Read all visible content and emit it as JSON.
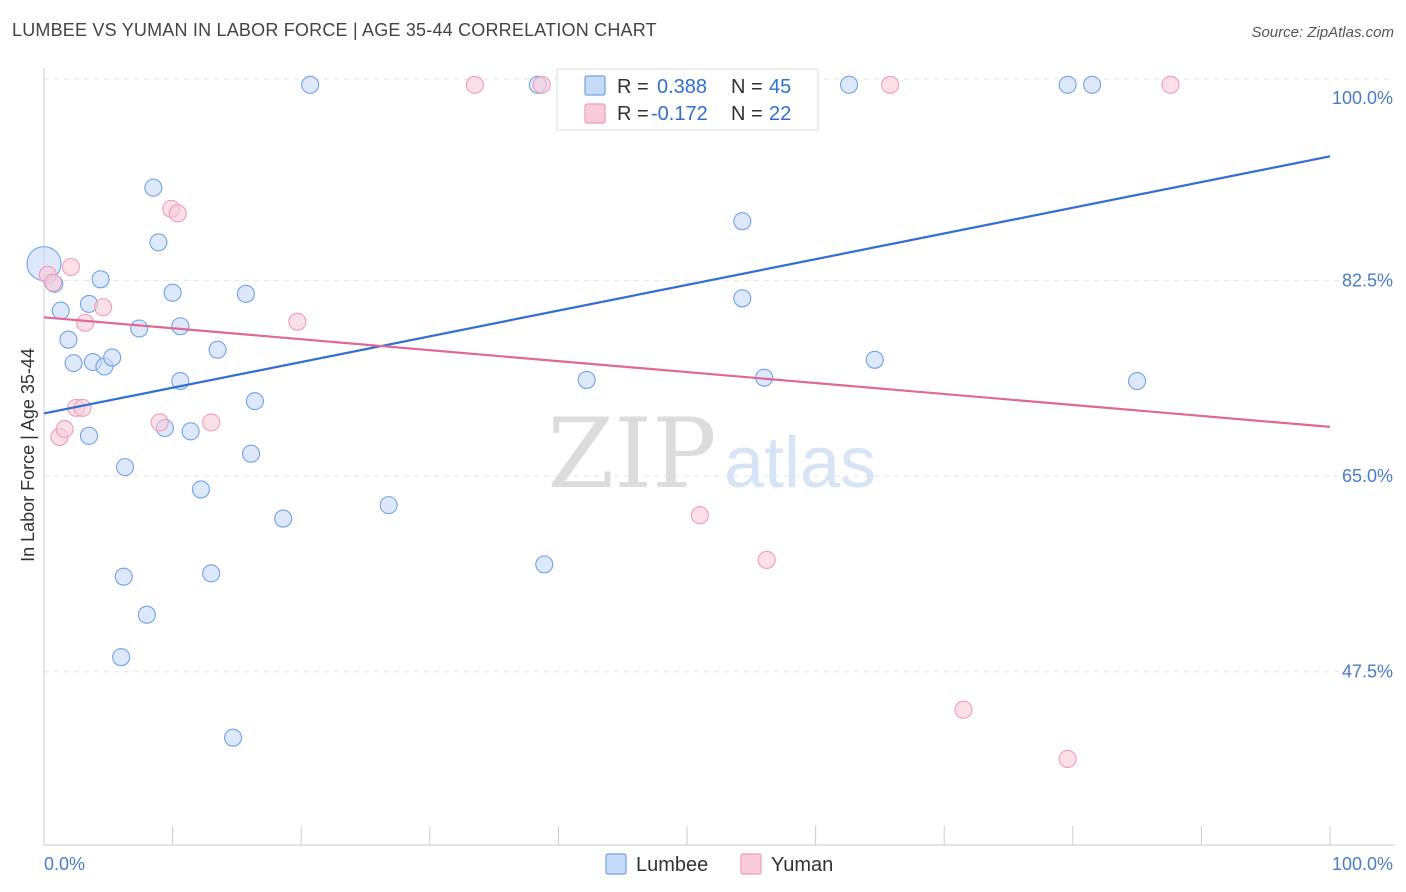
{
  "title": "LUMBEE VS YUMAN IN LABOR FORCE | AGE 35-44 CORRELATION CHART",
  "source": "Source: ZipAtlas.com",
  "watermark": {
    "zip": "ZIP",
    "atlas": "atlas"
  },
  "chart_data": {
    "type": "scatter",
    "title": "LUMBEE VS YUMAN IN LABOR FORCE | AGE 35-44 CORRELATION CHART",
    "xlabel": "",
    "ylabel": "In Labor Force | Age 35-44",
    "xlim": [
      0,
      100
    ],
    "ylim": [
      32,
      101.5
    ],
    "x_tick_labels": {
      "left": "0.0%",
      "right": "100.0%"
    },
    "y_ticks": [
      {
        "value": 100.0,
        "label": "100.0%"
      },
      {
        "value": 82.5,
        "label": "82.5%"
      },
      {
        "value": 65.0,
        "label": "65.0%"
      },
      {
        "value": 47.5,
        "label": "47.5%"
      }
    ],
    "grid": true,
    "legend": {
      "placement": "top-center",
      "entries": [
        {
          "series": "Lumbee",
          "r_label": "R =",
          "r": "0.388",
          "n_label": "N =",
          "n": "45"
        },
        {
          "series": "Yuman",
          "r_label": "R =",
          "r": "-0.172",
          "n_label": "N =",
          "n": "22"
        }
      ]
    },
    "series": [
      {
        "name": "Lumbee",
        "color": "#6fa3e6",
        "fill": "#c6dbf7",
        "trend_color": "#2f6fd0",
        "trend": {
          "x0": 0,
          "y0": 70.6,
          "x1": 100,
          "y1": 93.6
        },
        "points": [
          [
            0.0,
            84.0,
            "large"
          ],
          [
            0.8,
            82.2
          ],
          [
            1.3,
            79.8
          ],
          [
            1.9,
            77.2
          ],
          [
            2.3,
            75.1
          ],
          [
            3.5,
            80.4
          ],
          [
            3.5,
            68.6
          ],
          [
            3.8,
            75.2
          ],
          [
            4.4,
            82.6
          ],
          [
            4.7,
            74.8
          ],
          [
            5.3,
            75.6
          ],
          [
            6.3,
            65.8
          ],
          [
            6.2,
            56.0
          ],
          [
            6.0,
            48.8
          ],
          [
            7.4,
            78.2
          ],
          [
            8.0,
            52.6
          ],
          [
            8.5,
            90.8
          ],
          [
            8.9,
            85.9
          ],
          [
            9.4,
            69.3
          ],
          [
            10.0,
            81.4
          ],
          [
            10.6,
            78.4
          ],
          [
            10.6,
            73.5
          ],
          [
            11.4,
            69.0
          ],
          [
            12.2,
            63.8
          ],
          [
            13.0,
            56.3
          ],
          [
            13.5,
            76.3
          ],
          [
            14.7,
            41.6
          ],
          [
            15.7,
            81.3
          ],
          [
            16.1,
            67.0
          ],
          [
            16.4,
            71.7
          ],
          [
            18.6,
            61.2
          ],
          [
            20.7,
            100.0
          ],
          [
            26.8,
            62.4
          ],
          [
            38.4,
            100.0
          ],
          [
            38.9,
            57.1
          ],
          [
            42.2,
            73.6
          ],
          [
            48.0,
            100.0
          ],
          [
            54.3,
            87.8
          ],
          [
            54.3,
            80.9
          ],
          [
            56.0,
            73.8
          ],
          [
            62.6,
            100.0
          ],
          [
            64.6,
            75.4
          ],
          [
            79.6,
            100.0
          ],
          [
            81.5,
            100.0
          ],
          [
            85.0,
            73.5
          ]
        ]
      },
      {
        "name": "Yuman",
        "color": "#f29bb6",
        "fill": "#f9cbd9",
        "trend_color": "#e06796",
        "trend": {
          "x0": 0,
          "y0": 79.2,
          "x1": 100,
          "y1": 69.4
        },
        "points": [
          [
            0.3,
            83.0
          ],
          [
            1.2,
            68.5
          ],
          [
            1.6,
            69.2
          ],
          [
            2.1,
            83.7
          ],
          [
            2.5,
            71.1
          ],
          [
            3.0,
            71.1
          ],
          [
            3.2,
            78.7
          ],
          [
            4.6,
            80.1
          ],
          [
            9.0,
            69.8
          ],
          [
            9.9,
            88.9
          ],
          [
            10.4,
            88.5
          ],
          [
            13.0,
            69.8
          ],
          [
            19.7,
            78.8
          ],
          [
            33.5,
            100.0
          ],
          [
            38.7,
            100.0
          ],
          [
            51.0,
            61.5
          ],
          [
            56.2,
            57.5
          ],
          [
            65.8,
            100.0
          ],
          [
            71.5,
            44.1
          ],
          [
            79.6,
            39.7
          ],
          [
            87.6,
            100.0
          ],
          [
            0.7,
            82.3
          ]
        ]
      }
    ]
  }
}
